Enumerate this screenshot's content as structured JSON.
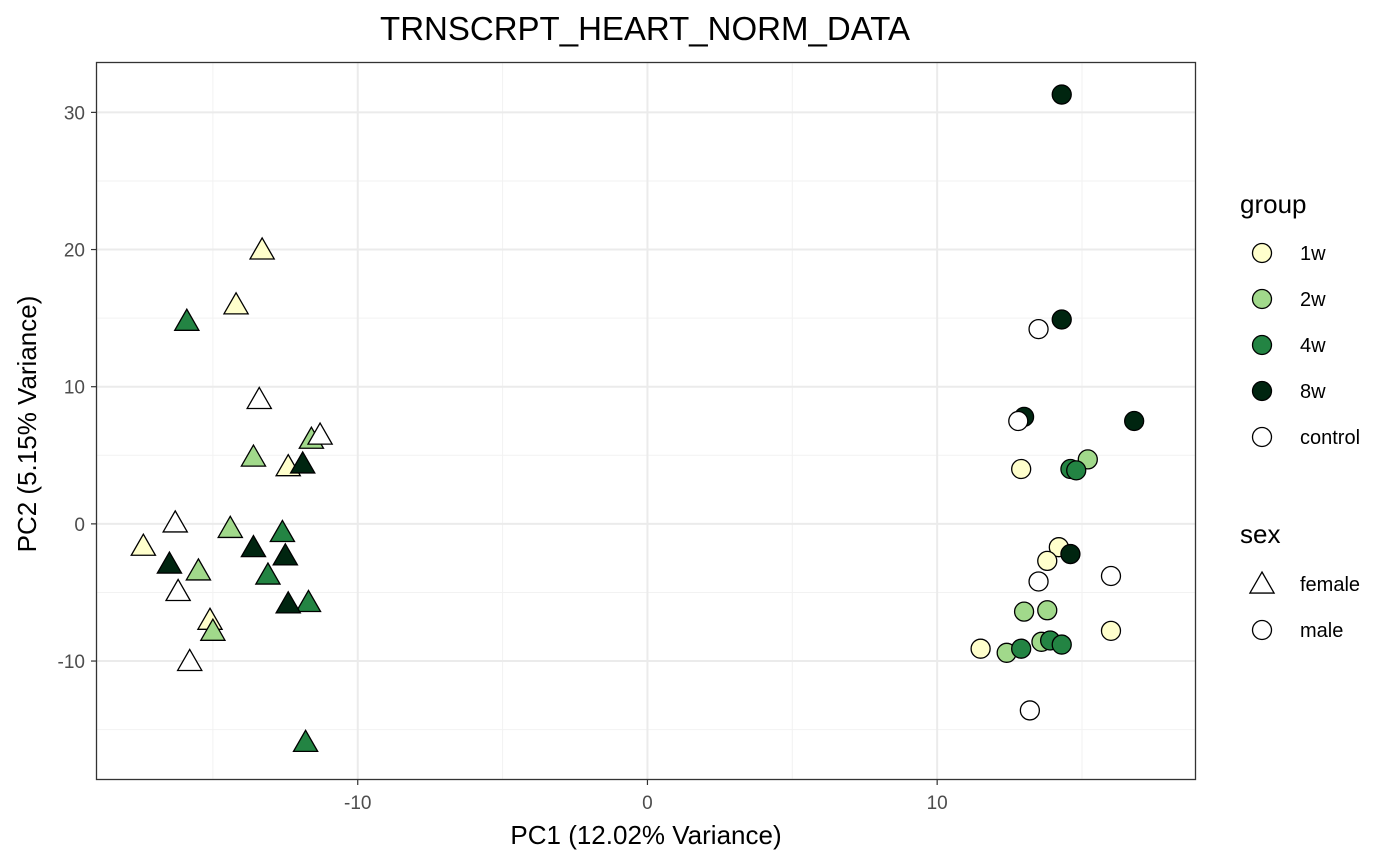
{
  "chart_data": {
    "type": "scatter",
    "title": "TRNSCRPT_HEART_NORM_DATA",
    "xlabel": "PC1 (12.02% Variance)",
    "ylabel": "PC2 (5.15% Variance)",
    "xlim": [
      -19,
      18.9
    ],
    "ylim": [
      -18.6,
      33.6
    ],
    "x_ticks": [
      -10,
      0,
      10
    ],
    "y_ticks": [
      -10,
      0,
      10,
      20,
      30
    ],
    "x_tick_labels": [
      "-10",
      "0",
      "10"
    ],
    "y_tick_labels": [
      "-10",
      "0",
      "10",
      "20",
      "30"
    ],
    "grid": true,
    "legend_position": "right",
    "legend": {
      "group": {
        "title": "group",
        "items": [
          {
            "label": "1w",
            "color": "#ffffcc"
          },
          {
            "label": "2w",
            "color": "#a1d98b"
          },
          {
            "label": "4w",
            "color": "#238443"
          },
          {
            "label": "8w",
            "color": "#002510"
          },
          {
            "label": "control",
            "color": "#ffffff"
          }
        ]
      },
      "sex": {
        "title": "sex",
        "items": [
          {
            "label": "female",
            "shape": "triangle"
          },
          {
            "label": "male",
            "shape": "circle"
          }
        ]
      }
    },
    "points": [
      {
        "x": -13.3,
        "y": 19.9,
        "group": "1w",
        "sex": "female"
      },
      {
        "x": -14.2,
        "y": 15.9,
        "group": "1w",
        "sex": "female"
      },
      {
        "x": -12.4,
        "y": 4.1,
        "group": "1w",
        "sex": "female"
      },
      {
        "x": -17.4,
        "y": -1.7,
        "group": "1w",
        "sex": "female"
      },
      {
        "x": -15.1,
        "y": -7.1,
        "group": "1w",
        "sex": "female"
      },
      {
        "x": -13.6,
        "y": 4.8,
        "group": "2w",
        "sex": "female"
      },
      {
        "x": -11.6,
        "y": 6.1,
        "group": "2w",
        "sex": "female"
      },
      {
        "x": -14.4,
        "y": -0.4,
        "group": "2w",
        "sex": "female"
      },
      {
        "x": -15.5,
        "y": -3.5,
        "group": "2w",
        "sex": "female"
      },
      {
        "x": -15.0,
        "y": -7.9,
        "group": "2w",
        "sex": "female"
      },
      {
        "x": -15.9,
        "y": 14.7,
        "group": "4w",
        "sex": "female"
      },
      {
        "x": -12.6,
        "y": -0.7,
        "group": "4w",
        "sex": "female"
      },
      {
        "x": -13.1,
        "y": -3.8,
        "group": "4w",
        "sex": "female"
      },
      {
        "x": -11.7,
        "y": -5.8,
        "group": "4w",
        "sex": "female"
      },
      {
        "x": -11.8,
        "y": -16.0,
        "group": "4w",
        "sex": "female"
      },
      {
        "x": -11.9,
        "y": 4.3,
        "group": "8w",
        "sex": "female"
      },
      {
        "x": -13.6,
        "y": -1.8,
        "group": "8w",
        "sex": "female"
      },
      {
        "x": -12.5,
        "y": -2.4,
        "group": "8w",
        "sex": "female"
      },
      {
        "x": -16.5,
        "y": -3.0,
        "group": "8w",
        "sex": "female"
      },
      {
        "x": -12.4,
        "y": -5.9,
        "group": "8w",
        "sex": "female"
      },
      {
        "x": -13.4,
        "y": 9.0,
        "group": "control",
        "sex": "female"
      },
      {
        "x": -11.3,
        "y": 6.4,
        "group": "control",
        "sex": "female"
      },
      {
        "x": -16.3,
        "y": 0.0,
        "group": "control",
        "sex": "female"
      },
      {
        "x": -16.2,
        "y": -5.0,
        "group": "control",
        "sex": "female"
      },
      {
        "x": -15.8,
        "y": -10.1,
        "group": "control",
        "sex": "female"
      },
      {
        "x": 12.9,
        "y": 4.0,
        "group": "1w",
        "sex": "male"
      },
      {
        "x": 14.2,
        "y": -1.7,
        "group": "1w",
        "sex": "male"
      },
      {
        "x": 13.8,
        "y": -2.7,
        "group": "1w",
        "sex": "male"
      },
      {
        "x": 16.0,
        "y": -7.8,
        "group": "1w",
        "sex": "male"
      },
      {
        "x": 11.5,
        "y": -9.1,
        "group": "1w",
        "sex": "male"
      },
      {
        "x": 15.2,
        "y": 4.7,
        "group": "2w",
        "sex": "male"
      },
      {
        "x": 13.0,
        "y": -6.4,
        "group": "2w",
        "sex": "male"
      },
      {
        "x": 13.8,
        "y": -6.3,
        "group": "2w",
        "sex": "male"
      },
      {
        "x": 13.6,
        "y": -8.6,
        "group": "2w",
        "sex": "male"
      },
      {
        "x": 12.4,
        "y": -9.4,
        "group": "2w",
        "sex": "male"
      },
      {
        "x": 14.6,
        "y": 4.0,
        "group": "4w",
        "sex": "male"
      },
      {
        "x": 14.8,
        "y": 3.9,
        "group": "4w",
        "sex": "male"
      },
      {
        "x": 12.9,
        "y": -9.1,
        "group": "4w",
        "sex": "male"
      },
      {
        "x": 13.9,
        "y": -8.5,
        "group": "4w",
        "sex": "male"
      },
      {
        "x": 14.3,
        "y": -8.8,
        "group": "4w",
        "sex": "male"
      },
      {
        "x": 14.3,
        "y": 31.3,
        "group": "8w",
        "sex": "male"
      },
      {
        "x": 14.3,
        "y": 14.9,
        "group": "8w",
        "sex": "male"
      },
      {
        "x": 13.0,
        "y": 7.8,
        "group": "8w",
        "sex": "male"
      },
      {
        "x": 16.8,
        "y": 7.5,
        "group": "8w",
        "sex": "male"
      },
      {
        "x": 14.6,
        "y": -2.2,
        "group": "8w",
        "sex": "male"
      },
      {
        "x": 13.5,
        "y": 14.2,
        "group": "control",
        "sex": "male"
      },
      {
        "x": 12.8,
        "y": 7.5,
        "group": "control",
        "sex": "male"
      },
      {
        "x": 13.5,
        "y": -4.2,
        "group": "control",
        "sex": "male"
      },
      {
        "x": 16.0,
        "y": -3.8,
        "group": "control",
        "sex": "male"
      },
      {
        "x": 13.2,
        "y": -13.6,
        "group": "control",
        "sex": "male"
      }
    ]
  }
}
